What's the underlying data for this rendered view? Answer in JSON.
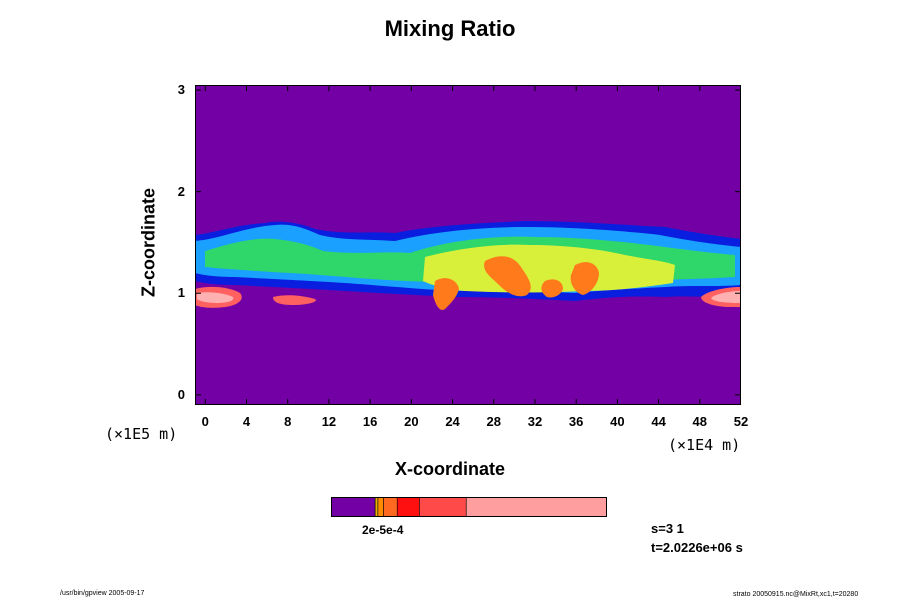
{
  "chart_data": {
    "type": "heatmap",
    "title": "Mixing Ratio",
    "xlabel": "X-coordinate",
    "ylabel": "Z-coordinate",
    "x_unit": "(×1E4 m)",
    "y_unit": "(×1E5 m)",
    "xlim": [
      -1,
      52
    ],
    "ylim": [
      -0.1,
      3.05
    ],
    "x_ticks": [
      "0",
      "4",
      "8",
      "12",
      "16",
      "20",
      "24",
      "28",
      "32",
      "36",
      "40",
      "44",
      "48",
      "52"
    ],
    "y_ticks": [
      "0",
      "1",
      "2",
      "3"
    ],
    "background_color": "#7300a4",
    "colorbar": {
      "label": "2e-5e-4",
      "segments": [
        {
          "color": "#7300a4",
          "fraction": 0.16
        },
        {
          "color": "#e7b300",
          "fraction": 0.01
        },
        {
          "color": "#ff8c00",
          "fraction": 0.02
        },
        {
          "color": "#ff6a20",
          "fraction": 0.05
        },
        {
          "color": "#ff1010",
          "fraction": 0.08
        },
        {
          "color": "#ff4a4a",
          "fraction": 0.17
        },
        {
          "color": "#ff9e9e",
          "fraction": 0.51
        }
      ]
    }
  },
  "info": {
    "s_text": "s=3 1",
    "t_text": "t=2.0226e+06 s"
  },
  "footer": {
    "left": "/usr/bin/gpview 2005-09-17",
    "right": "strato 20050915.nc@MixRt,xc1,t=20280"
  }
}
